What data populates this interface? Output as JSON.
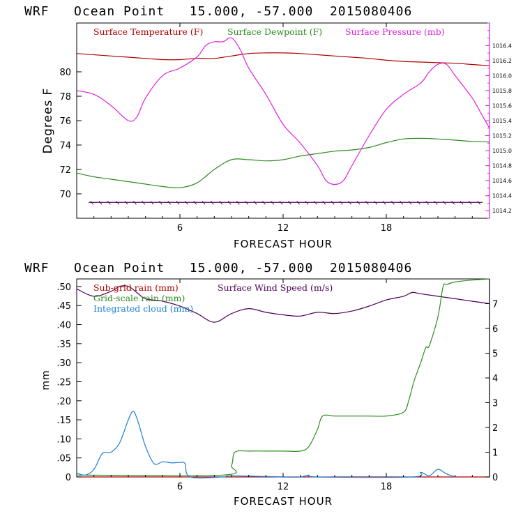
{
  "colors": {
    "temp": "#b00000",
    "dew": "#2e8b20",
    "pres": "#e020e0",
    "wind": "#4b0055",
    "subgrid": "#b00000",
    "gridscale": "#2e8b20",
    "cloud": "#1a7fd8",
    "axis": "#000000"
  },
  "chart_data": [
    {
      "type": "line",
      "title": "WRF   Ocean Point   15.000, -57.000  2015080406",
      "xlabel": "FORECAST HOUR",
      "ylabel": "Degrees F",
      "xlim": [
        0,
        24
      ],
      "ylim": [
        68,
        84
      ],
      "y2lim": [
        1014.1,
        1016.7
      ],
      "xticks": [
        "6",
        "12",
        "18"
      ],
      "yticks": [
        "70",
        "72",
        "74",
        "76",
        "78",
        "80"
      ],
      "y2ticks": [
        "1014.2",
        "1014.4",
        "1014.6",
        "1014.8",
        "1015.0",
        "1015.2",
        "1015.4",
        "1015.6",
        "1015.8",
        "1016.0",
        "1016.2",
        "1016.4"
      ],
      "legend": [
        "Surface Temperature (F)",
        "Surface Dewpoint (F)",
        "Surface Pressure (mb)"
      ],
      "series": [
        {
          "name": "Surface Temperature (F)",
          "axis": "left",
          "color_key": "temp",
          "x": [
            0,
            1,
            2,
            3,
            4,
            5,
            6,
            7,
            8,
            9,
            10,
            11,
            12,
            13,
            14,
            15,
            16,
            17,
            18,
            19,
            20,
            21,
            22,
            23,
            24
          ],
          "y": [
            81.5,
            81.4,
            81.3,
            81.2,
            81.1,
            81.0,
            81.0,
            81.1,
            81.1,
            81.3,
            81.5,
            81.55,
            81.55,
            81.5,
            81.4,
            81.3,
            81.2,
            81.1,
            80.95,
            80.85,
            80.8,
            80.75,
            80.7,
            80.6,
            80.5
          ]
        },
        {
          "name": "Surface Dewpoint (F)",
          "axis": "left",
          "color_key": "dew",
          "x": [
            0,
            1,
            2,
            3,
            4,
            5,
            6,
            7,
            8,
            9,
            10,
            11,
            12,
            13,
            14,
            15,
            16,
            17,
            18,
            19,
            20,
            21,
            22,
            23,
            24
          ],
          "y": [
            71.7,
            71.4,
            71.2,
            71.0,
            70.8,
            70.6,
            70.5,
            70.9,
            72.0,
            72.8,
            72.8,
            72.7,
            72.8,
            73.1,
            73.3,
            73.5,
            73.6,
            73.8,
            74.2,
            74.5,
            74.55,
            74.5,
            74.4,
            74.3,
            74.25
          ]
        },
        {
          "name": "Surface Pressure (mb)",
          "axis": "right",
          "color_key": "pres",
          "x": [
            0,
            1,
            2,
            3,
            3.5,
            4,
            5,
            6,
            7,
            7.5,
            8,
            8.5,
            9,
            9.5,
            10,
            11,
            12,
            13,
            14,
            14.5,
            15,
            15.5,
            16,
            17,
            18,
            19,
            20,
            20.5,
            21,
            21.5,
            22,
            23,
            23.5,
            24
          ],
          "y": [
            1015.8,
            1015.75,
            1015.6,
            1015.4,
            1015.45,
            1015.7,
            1016.0,
            1016.1,
            1016.25,
            1016.4,
            1016.45,
            1016.45,
            1016.5,
            1016.35,
            1016.1,
            1015.75,
            1015.35,
            1015.1,
            1014.8,
            1014.6,
            1014.55,
            1014.6,
            1014.8,
            1015.2,
            1015.55,
            1015.75,
            1015.9,
            1016.05,
            1016.15,
            1016.15,
            1016.0,
            1015.7,
            1015.5,
            1015.3
          ]
        },
        {
          "name": "Surface Wind Barbs",
          "axis": "left",
          "color_key": "wind",
          "x": [
            1,
            2,
            3,
            4,
            5,
            6,
            7,
            8,
            9,
            10,
            11,
            12,
            13,
            14,
            15,
            16,
            17,
            18,
            19,
            20,
            21,
            22,
            23
          ],
          "y": [
            69.3,
            69.3,
            69.3,
            69.3,
            69.3,
            69.3,
            69.3,
            69.3,
            69.3,
            69.3,
            69.3,
            69.3,
            69.3,
            69.3,
            69.3,
            69.3,
            69.3,
            69.3,
            69.3,
            69.3,
            69.3,
            69.3,
            69.3
          ]
        }
      ]
    },
    {
      "type": "line",
      "title": "WRF   Ocean Point   15.000, -57.000  2015080406",
      "xlabel": "FORECAST HOUR",
      "ylabel": "mm",
      "xlim": [
        0,
        24
      ],
      "ylim": [
        0,
        0.52
      ],
      "y2lim": [
        0,
        8
      ],
      "xticks": [
        "6",
        "12",
        "18"
      ],
      "yticks": [
        "0",
        ".05",
        ".10",
        ".15",
        ".20",
        ".25",
        ".30",
        ".35",
        ".40",
        ".45",
        ".50"
      ],
      "y2ticks": [
        "0",
        "1",
        "2",
        "3",
        "4",
        "5",
        "6",
        "7"
      ],
      "legend": [
        "Sub-grid rain (mm)",
        "Surface Wind Speed (m/s)",
        "Grid-scale rain (mm)",
        "Integrated cloud (mm)"
      ],
      "series": [
        {
          "name": "Sub-grid rain (mm)",
          "axis": "left",
          "color_key": "subgrid",
          "x": [
            0,
            24
          ],
          "y": [
            0.0,
            0.0
          ]
        },
        {
          "name": "Surface Wind Speed (m/s)",
          "axis": "right",
          "color_key": "wind",
          "x": [
            0,
            1,
            2,
            2.5,
            3,
            3.5,
            4,
            5,
            6,
            7,
            8,
            9,
            10,
            11,
            12,
            13,
            14,
            15,
            16,
            17,
            18,
            19,
            19.5,
            20,
            21,
            22,
            23,
            24
          ],
          "y": [
            7.6,
            7.3,
            7.5,
            7.7,
            7.7,
            7.45,
            7.2,
            7.1,
            6.9,
            6.6,
            6.25,
            6.6,
            6.8,
            6.65,
            6.55,
            6.5,
            6.65,
            6.6,
            6.7,
            6.9,
            7.15,
            7.3,
            7.45,
            7.4,
            7.3,
            7.2,
            7.1,
            7.0
          ]
        },
        {
          "name": "Grid-scale rain (mm)",
          "axis": "left",
          "color_key": "gridscale",
          "x": [
            0,
            8.5,
            9,
            9.2,
            10,
            11,
            12,
            13,
            13.5,
            14,
            14.3,
            15,
            16,
            17,
            18,
            19,
            19.3,
            19.6,
            20,
            20.3,
            20.5,
            21,
            21.3,
            21.5,
            22,
            23,
            24
          ],
          "y": [
            0.005,
            0.005,
            0.03,
            0.065,
            0.068,
            0.068,
            0.068,
            0.068,
            0.08,
            0.125,
            0.16,
            0.16,
            0.16,
            0.16,
            0.16,
            0.17,
            0.2,
            0.25,
            0.3,
            0.34,
            0.345,
            0.42,
            0.5,
            0.505,
            0.512,
            0.517,
            0.52
          ]
        },
        {
          "name": "Integrated cloud (mm)",
          "axis": "left",
          "color_key": "cloud",
          "x": [
            0,
            0.5,
            1,
            1.5,
            2,
            2.5,
            3,
            3.3,
            3.6,
            4,
            4.5,
            5,
            5.5,
            6,
            6.3,
            6.6,
            8.5,
            9,
            12,
            13,
            13.5,
            14,
            19.5,
            20,
            20.5,
            21,
            21.5,
            22
          ],
          "y": [
            0.01,
            0.005,
            0.02,
            0.062,
            0.065,
            0.09,
            0.15,
            0.172,
            0.14,
            0.08,
            0.035,
            0.04,
            0.037,
            0.038,
            0.035,
            0.0,
            0.0,
            0.003,
            0.0,
            0.0,
            0.005,
            0.0,
            0.0,
            0.012,
            0.003,
            0.02,
            0.008,
            0.0
          ]
        }
      ]
    }
  ]
}
